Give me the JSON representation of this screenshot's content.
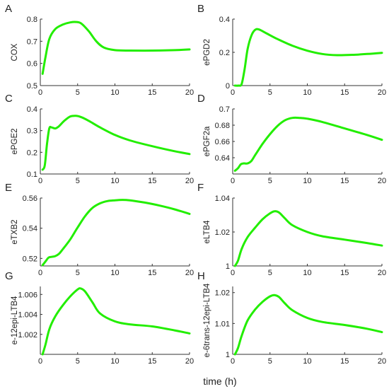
{
  "figure": {
    "xlabel": "time (h)",
    "series_color": "#22ee00",
    "background": "#ffffff"
  },
  "chart_data": [
    {
      "type": "line",
      "label": "A",
      "ylabel": "COX",
      "xlim": [
        0,
        20
      ],
      "ylim": [
        0.5,
        0.8
      ],
      "xticks": [
        0,
        5,
        10,
        15,
        20
      ],
      "yticks": [
        0.5,
        0.6,
        0.7,
        0.8
      ],
      "ytick_labels": [
        "0.5",
        "0.6",
        "0.7",
        "0.8"
      ],
      "series": [
        {
          "x": [
            0.3,
            0.7,
            1.2,
            2,
            3,
            4,
            4.8,
            5.5,
            6.5,
            7.5,
            8.5,
            10,
            12,
            15,
            18,
            20
          ],
          "y": [
            0.553,
            0.63,
            0.71,
            0.755,
            0.775,
            0.785,
            0.787,
            0.78,
            0.745,
            0.7,
            0.672,
            0.66,
            0.658,
            0.658,
            0.66,
            0.663
          ]
        }
      ]
    },
    {
      "type": "line",
      "label": "B",
      "ylabel": "ePGD2",
      "xlim": [
        0,
        20
      ],
      "ylim": [
        0,
        0.4
      ],
      "xticks": [
        0,
        5,
        10,
        15,
        20
      ],
      "yticks": [
        0,
        0.2,
        0.4
      ],
      "ytick_labels": [
        "0",
        "0.2",
        "0.4"
      ],
      "series": [
        {
          "x": [
            0.3,
            0.8,
            1.2,
            1.6,
            2,
            2.5,
            3,
            3.5,
            4.5,
            6,
            8,
            10,
            12,
            14,
            16,
            18,
            20
          ],
          "y": [
            0,
            0,
            0.01,
            0.1,
            0.22,
            0.3,
            0.335,
            0.338,
            0.315,
            0.28,
            0.24,
            0.21,
            0.19,
            0.183,
            0.185,
            0.19,
            0.197
          ]
        }
      ]
    },
    {
      "type": "line",
      "label": "C",
      "ylabel": "ePGE2",
      "xlim": [
        0,
        20
      ],
      "ylim": [
        0.1,
        0.4
      ],
      "xticks": [
        0,
        5,
        10,
        15,
        20
      ],
      "yticks": [
        0.1,
        0.2,
        0.3,
        0.4
      ],
      "ytick_labels": [
        "0.1",
        "0.2",
        "0.3",
        "0.4"
      ],
      "series": [
        {
          "x": [
            0.3,
            0.6,
            0.9,
            1.2,
            1.5,
            2,
            2.5,
            3.2,
            4,
            4.8,
            5.5,
            6.5,
            8,
            10,
            12,
            15,
            18,
            20
          ],
          "y": [
            0.12,
            0.14,
            0.24,
            0.31,
            0.315,
            0.31,
            0.32,
            0.345,
            0.365,
            0.368,
            0.362,
            0.345,
            0.315,
            0.28,
            0.255,
            0.228,
            0.205,
            0.192
          ]
        }
      ]
    },
    {
      "type": "line",
      "label": "D",
      "ylabel": "ePGF2a",
      "xlim": [
        0,
        20
      ],
      "ylim": [
        0.62,
        0.7
      ],
      "xticks": [
        0,
        5,
        10,
        15,
        20
      ],
      "yticks": [
        0.64,
        0.66,
        0.68,
        0.7
      ],
      "ytick_labels": [
        "0.64",
        "0.66",
        "0.68",
        "0.7"
      ],
      "series": [
        {
          "x": [
            0.3,
            0.7,
            1.1,
            1.5,
            2,
            2.5,
            3,
            4,
            5,
            6,
            7,
            8,
            9,
            10,
            12,
            15,
            18,
            20
          ],
          "y": [
            0.624,
            0.627,
            0.632,
            0.633,
            0.633,
            0.636,
            0.643,
            0.657,
            0.669,
            0.679,
            0.686,
            0.689,
            0.689,
            0.688,
            0.684,
            0.676,
            0.668,
            0.662
          ]
        }
      ]
    },
    {
      "type": "line",
      "label": "E",
      "ylabel": "eTXB2",
      "xlim": [
        0,
        20
      ],
      "ylim": [
        0.515,
        0.56
      ],
      "xticks": [
        0,
        5,
        10,
        15,
        20
      ],
      "yticks": [
        0.52,
        0.54,
        0.56
      ],
      "ytick_labels": [
        "0.52",
        "0.54",
        "0.56"
      ],
      "series": [
        {
          "x": [
            0.3,
            0.7,
            1.1,
            1.5,
            2,
            2.5,
            3,
            4,
            5,
            6,
            7,
            8,
            9,
            10,
            11,
            12,
            14,
            16,
            18,
            20
          ],
          "y": [
            0.5155,
            0.518,
            0.5205,
            0.521,
            0.5215,
            0.523,
            0.526,
            0.5325,
            0.5405,
            0.548,
            0.5535,
            0.5565,
            0.558,
            0.5585,
            0.5588,
            0.5585,
            0.557,
            0.555,
            0.5525,
            0.5495
          ]
        }
      ]
    },
    {
      "type": "line",
      "label": "F",
      "ylabel": "eLTB4",
      "xlim": [
        0,
        20
      ],
      "ylim": [
        1,
        1.04
      ],
      "xticks": [
        0,
        5,
        10,
        15,
        20
      ],
      "yticks": [
        1,
        1.02,
        1.04
      ],
      "ytick_labels": [
        "1",
        "1.02",
        "1.04"
      ],
      "series": [
        {
          "x": [
            0.3,
            0.7,
            1.2,
            2,
            3,
            4,
            5,
            5.6,
            6.2,
            7,
            8,
            10,
            12,
            15,
            18,
            20
          ],
          "y": [
            1,
            1.003,
            1.01,
            1.017,
            1.0225,
            1.0275,
            1.031,
            1.0322,
            1.0315,
            1.028,
            1.024,
            1.02,
            1.0175,
            1.0155,
            1.0135,
            1.012
          ]
        }
      ]
    },
    {
      "type": "line",
      "label": "G",
      "ylabel": "e-12epi-LTB4",
      "xlim": [
        0,
        20
      ],
      "ylim": [
        1,
        1.0068
      ],
      "xticks": [
        0,
        5,
        10,
        15,
        20
      ],
      "yticks": [
        1.002,
        1.004,
        1.006
      ],
      "ytick_labels": [
        "1.002",
        "1.004",
        "1.006"
      ],
      "series": [
        {
          "x": [
            0.3,
            0.7,
            1.2,
            2,
            3,
            4,
            5,
            5.4,
            6,
            7,
            8,
            10,
            12,
            15,
            18,
            20
          ],
          "y": [
            1,
            1.001,
            1.0025,
            1.0038,
            1.0049,
            1.0058,
            1.0065,
            1.0066,
            1.0063,
            1.0052,
            1.0041,
            1.0033,
            1.003,
            1.0028,
            1.0024,
            1.0021
          ]
        }
      ]
    },
    {
      "type": "line",
      "label": "H",
      "ylabel": "e-6trans-12epi-LTB4",
      "xlim": [
        0,
        20
      ],
      "ylim": [
        1,
        1.022
      ],
      "xticks": [
        0,
        5,
        10,
        15,
        20
      ],
      "yticks": [
        1,
        1.01,
        1.02
      ],
      "ytick_labels": [
        "1",
        "1.01",
        "1.02"
      ],
      "series": [
        {
          "x": [
            0.3,
            0.7,
            1.2,
            2,
            3,
            4,
            5,
            5.6,
            6.2,
            7,
            8,
            10,
            12,
            15,
            18,
            20
          ],
          "y": [
            1,
            1.002,
            1.006,
            1.011,
            1.0145,
            1.017,
            1.0188,
            1.0192,
            1.0186,
            1.0165,
            1.0143,
            1.0118,
            1.0105,
            1.0095,
            1.0083,
            1.0072
          ]
        }
      ]
    }
  ]
}
